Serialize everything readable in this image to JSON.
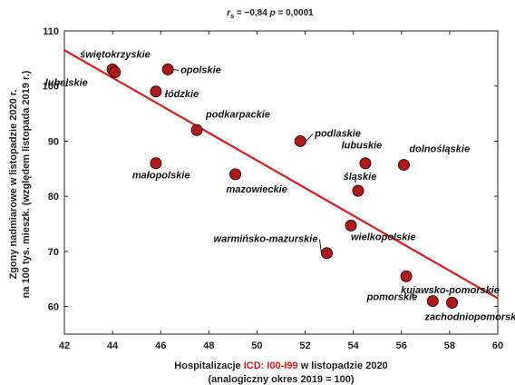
{
  "chart_data": {
    "type": "scatter",
    "stat_text": "r_s = −0,84 p = 0,0001",
    "stat": {
      "r_prefix": "r",
      "r_sub": "s",
      "r_value": " = −0,84 ",
      "p_prefix": "p",
      "p_value": " = 0,0001"
    },
    "xlabel_parts": [
      "Hospitalizacje ",
      "ICD: I00-I99",
      " w listopadzie 2020"
    ],
    "xlabel_line2": "(analogiczny okres 2019 = 100)",
    "ylabel_line1": "Zgony nadmiarowe w listopadzie 2020 r.",
    "ylabel_line2": "na 100 tys. mieszk. (względem listopada 2019 r.)",
    "xlim": [
      42,
      60
    ],
    "ylim": [
      55,
      110
    ],
    "xticks": [
      42,
      44,
      46,
      48,
      50,
      52,
      54,
      56,
      58,
      60
    ],
    "yticks": [
      60,
      70,
      80,
      90,
      100,
      110
    ],
    "grid": false,
    "colors": {
      "point": "#b0191c",
      "point_stroke": "#3a0707",
      "line": "#d61e1e",
      "highlight": "#d81b1b"
    },
    "trend_line": {
      "x": [
        42,
        60
      ],
      "y": [
        106.5,
        61.5
      ]
    },
    "points": [
      {
        "name": "świętokrzyskie",
        "x": 44.0,
        "y": 103.0
      },
      {
        "name": "lubelskie",
        "x": 44.1,
        "y": 102.5
      },
      {
        "name": "opolskie",
        "x": 46.3,
        "y": 103.0
      },
      {
        "name": "łódzkie",
        "x": 45.8,
        "y": 99.0
      },
      {
        "name": "podkarpackie",
        "x": 47.5,
        "y": 92.0
      },
      {
        "name": "małopolskie",
        "x": 45.8,
        "y": 86.0
      },
      {
        "name": "mazowieckie",
        "x": 49.1,
        "y": 84.0
      },
      {
        "name": "podlaskie",
        "x": 51.8,
        "y": 90.0
      },
      {
        "name": "lubuskie",
        "x": 54.5,
        "y": 86.0
      },
      {
        "name": "dolnośląskie",
        "x": 56.1,
        "y": 85.7
      },
      {
        "name": "śląskie",
        "x": 54.2,
        "y": 81.0
      },
      {
        "name": "wielkopolskie",
        "x": 53.9,
        "y": 74.7
      },
      {
        "name": "warmińsko-mazurskie",
        "x": 52.9,
        "y": 69.7
      },
      {
        "name": "kujawsko-pomorskie",
        "x": 56.2,
        "y": 65.5
      },
      {
        "name": "pomorskie",
        "x": 57.3,
        "y": 61.0
      },
      {
        "name": "zachodniopomorskie",
        "x": 58.1,
        "y": 60.7
      }
    ]
  }
}
